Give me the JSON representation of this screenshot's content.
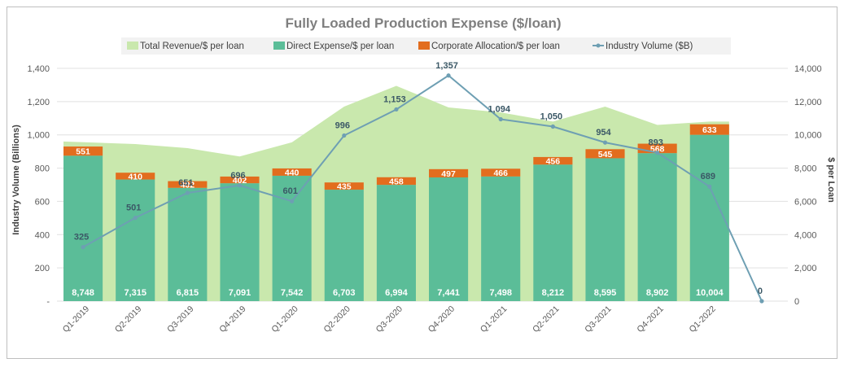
{
  "chart_data": {
    "type": "bar",
    "title": "Fully Loaded Production Expense ($/loan)",
    "y_left_label": "Industry Volume (Billions)",
    "y_right_label": "$ per Loan",
    "y_left_ticks": [
      "-",
      "200",
      "400",
      "600",
      "800",
      "1,000",
      "1,200",
      "1,400"
    ],
    "y_right_ticks": [
      "0",
      "2,000",
      "4,000",
      "6,000",
      "8,000",
      "10,000",
      "12,000",
      "14,000"
    ],
    "ylim_left": [
      0,
      1400
    ],
    "ylim_right": [
      0,
      14000
    ],
    "categories": [
      "Q1-2019",
      "Q2-2019",
      "Q3-2019",
      "Q4-2019",
      "Q1-2020",
      "Q2-2020",
      "Q3-2020",
      "Q4-2020",
      "Q1-2021",
      "Q2-2021",
      "Q3-2021",
      "Q4-2021",
      "Q1-2022",
      ""
    ],
    "series": [
      {
        "name": "Total Revenue/$ per loan",
        "kind": "area",
        "axis": "right",
        "color": "#c9e8ad",
        "values": [
          9600,
          9450,
          9200,
          8700,
          9550,
          11700,
          12950,
          11650,
          11350,
          10800,
          11700,
          10600,
          10800,
          null
        ]
      },
      {
        "name": "Direct Expense/$ per loan",
        "kind": "bar",
        "axis": "right",
        "color": "#5bbd98",
        "values": [
          8748,
          7315,
          6815,
          7091,
          7542,
          6703,
          6994,
          7441,
          7498,
          8212,
          8595,
          8902,
          10004,
          null
        ],
        "labels": [
          "8,748",
          "7,315",
          "6,815",
          "7,091",
          "7,542",
          "6,703",
          "6,994",
          "7,441",
          "7,498",
          "8,212",
          "8,595",
          "8,902",
          "10,004",
          ""
        ]
      },
      {
        "name": "Corporate Allocation/$ per loan",
        "kind": "bar-stacked",
        "axis": "right",
        "color": "#e26d1e",
        "values": [
          551,
          410,
          402,
          402,
          440,
          435,
          458,
          497,
          466,
          456,
          545,
          568,
          633,
          null
        ],
        "labels": [
          "551",
          "410",
          "402",
          "402",
          "440",
          "435",
          "458",
          "497",
          "466",
          "456",
          "545",
          "568",
          "633",
          ""
        ]
      },
      {
        "name": "Industry Volume ($B)",
        "kind": "line",
        "axis": "left",
        "color": "#6e9fb3",
        "values": [
          325,
          501,
          651,
          696,
          601,
          996,
          1153,
          1357,
          1094,
          1050,
          954,
          893,
          689,
          0
        ],
        "labels": [
          "325",
          "501",
          "651",
          "696",
          "601",
          "996",
          "1,153",
          "1,357",
          "1,094",
          "1,050",
          "954",
          "893",
          "689",
          "0"
        ]
      }
    ],
    "legend_position": "top",
    "grid": true
  }
}
